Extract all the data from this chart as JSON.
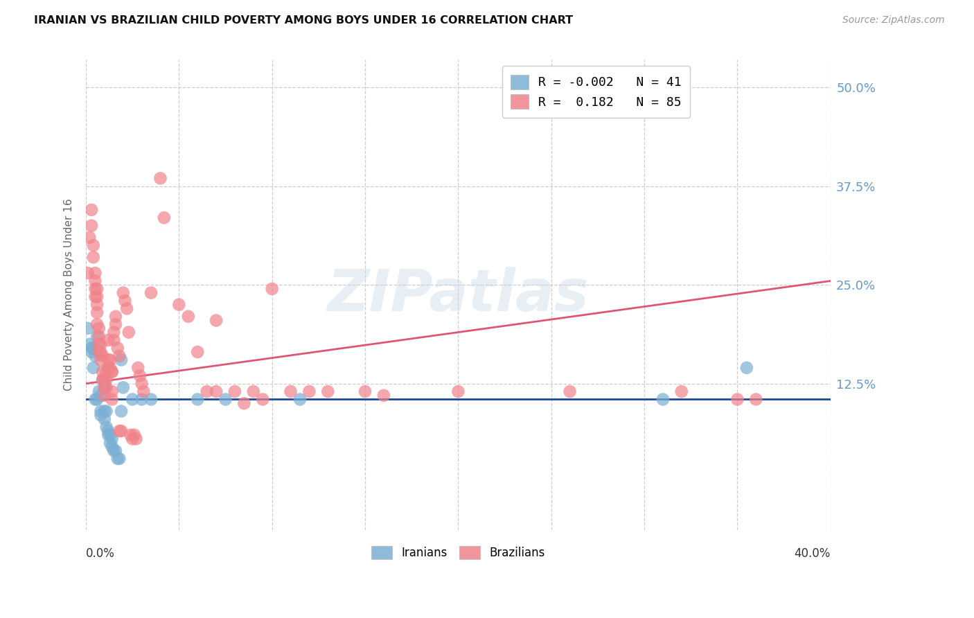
{
  "title": "IRANIAN VS BRAZILIAN CHILD POVERTY AMONG BOYS UNDER 16 CORRELATION CHART",
  "source": "Source: ZipAtlas.com",
  "ylabel": "Child Poverty Among Boys Under 16",
  "right_yticks": [
    "50.0%",
    "37.5%",
    "25.0%",
    "12.5%"
  ],
  "right_ytick_vals": [
    0.5,
    0.375,
    0.25,
    0.125
  ],
  "xmin": 0.0,
  "xmax": 0.4,
  "ymin": -0.06,
  "ymax": 0.535,
  "watermark": "ZIPatlas",
  "iranians_color": "#7bafd4",
  "brazilians_color": "#f0828a",
  "iranians_line_color": "#1a4a99",
  "brazilians_line_color": "#e05575",
  "background_color": "#ffffff",
  "grid_color": "#cccccc",
  "title_color": "#111111",
  "axis_label_color": "#666666",
  "right_axis_color": "#6699cc",
  "iranians_points": [
    [
      0.001,
      0.195
    ],
    [
      0.002,
      0.175
    ],
    [
      0.003,
      0.17
    ],
    [
      0.003,
      0.165
    ],
    [
      0.004,
      0.17
    ],
    [
      0.004,
      0.145
    ],
    [
      0.005,
      0.16
    ],
    [
      0.005,
      0.105
    ],
    [
      0.006,
      0.185
    ],
    [
      0.006,
      0.105
    ],
    [
      0.007,
      0.115
    ],
    [
      0.008,
      0.11
    ],
    [
      0.008,
      0.09
    ],
    [
      0.008,
      0.085
    ],
    [
      0.009,
      0.13
    ],
    [
      0.01,
      0.12
    ],
    [
      0.01,
      0.09
    ],
    [
      0.01,
      0.08
    ],
    [
      0.011,
      0.09
    ],
    [
      0.011,
      0.07
    ],
    [
      0.012,
      0.065
    ],
    [
      0.012,
      0.06
    ],
    [
      0.013,
      0.06
    ],
    [
      0.013,
      0.05
    ],
    [
      0.014,
      0.055
    ],
    [
      0.014,
      0.045
    ],
    [
      0.015,
      0.04
    ],
    [
      0.016,
      0.04
    ],
    [
      0.017,
      0.03
    ],
    [
      0.018,
      0.03
    ],
    [
      0.019,
      0.155
    ],
    [
      0.019,
      0.09
    ],
    [
      0.02,
      0.12
    ],
    [
      0.025,
      0.105
    ],
    [
      0.03,
      0.105
    ],
    [
      0.035,
      0.105
    ],
    [
      0.06,
      0.105
    ],
    [
      0.075,
      0.105
    ],
    [
      0.115,
      0.105
    ],
    [
      0.31,
      0.105
    ],
    [
      0.355,
      0.145
    ]
  ],
  "brazilians_points": [
    [
      0.001,
      0.265
    ],
    [
      0.002,
      0.31
    ],
    [
      0.003,
      0.345
    ],
    [
      0.003,
      0.325
    ],
    [
      0.004,
      0.3
    ],
    [
      0.004,
      0.285
    ],
    [
      0.005,
      0.265
    ],
    [
      0.005,
      0.255
    ],
    [
      0.005,
      0.245
    ],
    [
      0.005,
      0.235
    ],
    [
      0.006,
      0.245
    ],
    [
      0.006,
      0.235
    ],
    [
      0.006,
      0.225
    ],
    [
      0.006,
      0.215
    ],
    [
      0.006,
      0.2
    ],
    [
      0.007,
      0.195
    ],
    [
      0.007,
      0.185
    ],
    [
      0.007,
      0.175
    ],
    [
      0.007,
      0.165
    ],
    [
      0.008,
      0.175
    ],
    [
      0.008,
      0.165
    ],
    [
      0.008,
      0.155
    ],
    [
      0.009,
      0.16
    ],
    [
      0.009,
      0.14
    ],
    [
      0.009,
      0.13
    ],
    [
      0.01,
      0.13
    ],
    [
      0.01,
      0.12
    ],
    [
      0.01,
      0.11
    ],
    [
      0.011,
      0.14
    ],
    [
      0.011,
      0.13
    ],
    [
      0.011,
      0.12
    ],
    [
      0.012,
      0.18
    ],
    [
      0.012,
      0.155
    ],
    [
      0.012,
      0.145
    ],
    [
      0.013,
      0.155
    ],
    [
      0.013,
      0.145
    ],
    [
      0.014,
      0.14
    ],
    [
      0.014,
      0.14
    ],
    [
      0.014,
      0.115
    ],
    [
      0.014,
      0.105
    ],
    [
      0.015,
      0.19
    ],
    [
      0.015,
      0.18
    ],
    [
      0.016,
      0.21
    ],
    [
      0.016,
      0.2
    ],
    [
      0.017,
      0.17
    ],
    [
      0.018,
      0.16
    ],
    [
      0.018,
      0.065
    ],
    [
      0.019,
      0.065
    ],
    [
      0.02,
      0.24
    ],
    [
      0.021,
      0.23
    ],
    [
      0.022,
      0.22
    ],
    [
      0.023,
      0.19
    ],
    [
      0.024,
      0.06
    ],
    [
      0.025,
      0.055
    ],
    [
      0.026,
      0.06
    ],
    [
      0.027,
      0.055
    ],
    [
      0.028,
      0.145
    ],
    [
      0.029,
      0.135
    ],
    [
      0.03,
      0.125
    ],
    [
      0.031,
      0.115
    ],
    [
      0.035,
      0.24
    ],
    [
      0.04,
      0.385
    ],
    [
      0.042,
      0.335
    ],
    [
      0.05,
      0.225
    ],
    [
      0.055,
      0.21
    ],
    [
      0.06,
      0.165
    ],
    [
      0.065,
      0.115
    ],
    [
      0.07,
      0.205
    ],
    [
      0.07,
      0.115
    ],
    [
      0.08,
      0.115
    ],
    [
      0.085,
      0.1
    ],
    [
      0.09,
      0.115
    ],
    [
      0.095,
      0.105
    ],
    [
      0.1,
      0.245
    ],
    [
      0.11,
      0.115
    ],
    [
      0.12,
      0.115
    ],
    [
      0.13,
      0.115
    ],
    [
      0.15,
      0.115
    ],
    [
      0.16,
      0.11
    ],
    [
      0.2,
      0.115
    ],
    [
      0.26,
      0.115
    ],
    [
      0.32,
      0.115
    ],
    [
      0.35,
      0.105
    ],
    [
      0.36,
      0.105
    ]
  ],
  "iranians_line_y0": 0.105,
  "iranians_line_y1": 0.105,
  "brazilians_line_x0": 0.0,
  "brazilians_line_y0": 0.125,
  "brazilians_line_x1": 0.4,
  "brazilians_line_y1": 0.255
}
